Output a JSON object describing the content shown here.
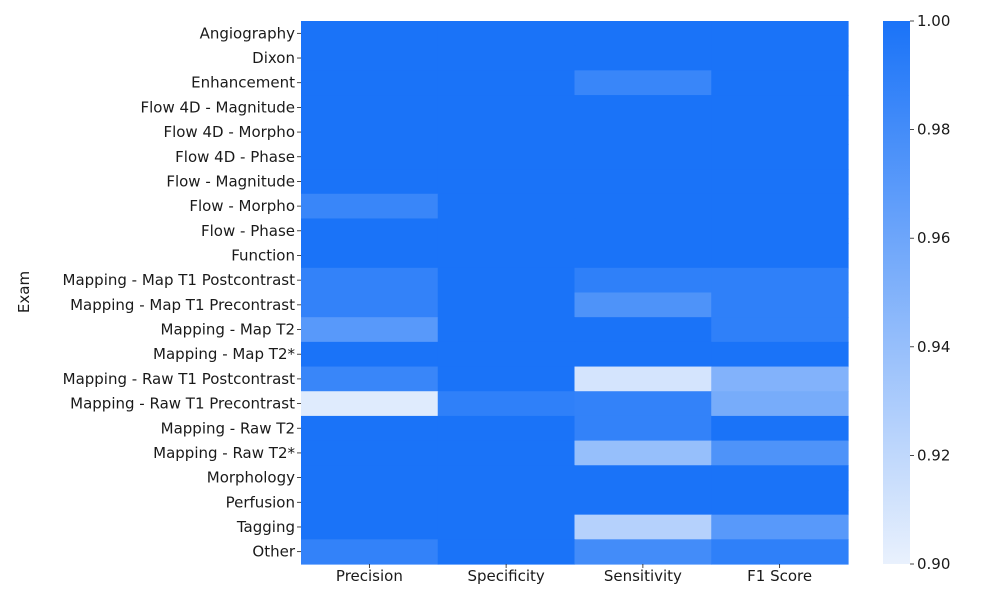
{
  "chart_data": {
    "type": "heatmap",
    "ylabel": "Exam",
    "xlabel": "",
    "columns": [
      "Precision",
      "Specificity",
      "Sensitivity",
      "F1 Score"
    ],
    "rows": [
      "Angiography",
      "Dixon",
      "Enhancement",
      "Flow 4D - Magnitude",
      "Flow 4D - Morpho",
      "Flow 4D - Phase",
      "Flow - Magnitude",
      "Flow - Morpho",
      "Flow - Phase",
      "Function",
      "Mapping - Map T1 Postcontrast",
      "Mapping - Map T1 Precontrast",
      "Mapping - Map T2",
      "Mapping - Map T2*",
      "Mapping - Raw T1 Postcontrast",
      "Mapping - Raw T1 Precontrast",
      "Mapping - Raw T2",
      "Mapping - Raw T2*",
      "Morphology",
      "Perfusion",
      "Tagging",
      "Other"
    ],
    "values": [
      [
        1.0,
        1.0,
        1.0,
        1.0
      ],
      [
        1.0,
        1.0,
        1.0,
        1.0
      ],
      [
        1.0,
        1.0,
        0.985,
        1.0
      ],
      [
        1.0,
        1.0,
        1.0,
        1.0
      ],
      [
        1.0,
        1.0,
        1.0,
        1.0
      ],
      [
        1.0,
        1.0,
        1.0,
        1.0
      ],
      [
        1.0,
        1.0,
        1.0,
        1.0
      ],
      [
        0.985,
        1.0,
        1.0,
        1.0
      ],
      [
        1.0,
        1.0,
        1.0,
        1.0
      ],
      [
        1.0,
        1.0,
        1.0,
        1.0
      ],
      [
        0.988,
        1.0,
        0.99,
        0.99
      ],
      [
        0.988,
        1.0,
        0.975,
        0.99
      ],
      [
        0.97,
        1.0,
        1.0,
        0.99
      ],
      [
        1.0,
        1.0,
        1.0,
        1.0
      ],
      [
        0.985,
        1.0,
        0.91,
        0.95
      ],
      [
        0.905,
        0.99,
        0.988,
        0.955
      ],
      [
        1.0,
        1.0,
        0.988,
        1.0
      ],
      [
        1.0,
        1.0,
        0.94,
        0.975
      ],
      [
        1.0,
        1.0,
        1.0,
        1.0
      ],
      [
        1.0,
        1.0,
        1.0,
        1.0
      ],
      [
        1.0,
        1.0,
        0.925,
        0.97
      ],
      [
        0.988,
        1.0,
        0.98,
        0.99
      ]
    ],
    "colorbar": {
      "min": 0.9,
      "max": 1.0,
      "ticks": [
        "1.00",
        "0.98",
        "0.96",
        "0.94",
        "0.92",
        "0.90"
      ],
      "tick_values": [
        1.0,
        0.98,
        0.96,
        0.94,
        0.92,
        0.9
      ],
      "color_low": "#e9f1fd",
      "color_high": "#1a73f8"
    }
  }
}
